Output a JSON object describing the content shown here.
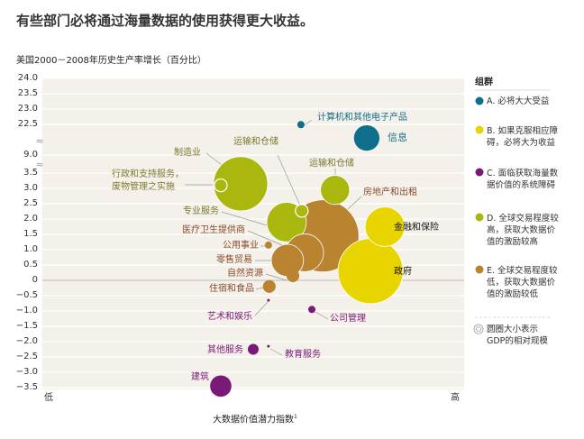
{
  "title": "有些部门必将通过海量数据的使用获得更大收益。",
  "chart_data": {
    "type": "scatter",
    "subtype": "bubble",
    "title": "有些部门必将通过海量数据的使用获得更大收益。",
    "ylabel": "美国2000－2008年历史生产率增长（百分比）",
    "xlabel": "大数据价值潜力指数",
    "xlabel_footnote": "1",
    "x_low_label": "低",
    "x_high_label": "高",
    "x_range": [
      0,
      100
    ],
    "y_axis_broken": true,
    "yticks": [
      "24.0",
      "23.5",
      "23.0",
      "22.5",
      "9.0",
      "3.5",
      "3.0",
      "2.5",
      "2.0",
      "1.5",
      "1.0",
      "0.5",
      "0",
      "-0.5",
      "-1.0",
      "-1.5",
      "-2.0",
      "-2.5",
      "-3.0",
      "-3.5"
    ],
    "grid": true,
    "legend_placement": "right",
    "legend_title": "组群",
    "groups": [
      {
        "id": "A",
        "label": "A. 必将大大受益",
        "color": "#0e6e8c"
      },
      {
        "id": "B",
        "label": "B. 如果克服相应障碍，必将大为收益",
        "color": "#e8d500"
      },
      {
        "id": "C",
        "label": "C. 面临获取海量数据价值的系统障碍",
        "color": "#7a1a78"
      },
      {
        "id": "D",
        "label": "D. 全球交易程度较高，获取大数据价值的激励较高",
        "color": "#a9b70e"
      },
      {
        "id": "E",
        "label": "E. 全球交易程度较低，获取大数据价值的激励较低",
        "color": "#b9832f"
      }
    ],
    "size_note": "圆圈大小表示GDP的相对规模",
    "points": [
      {
        "name": "计算机和其他电子产品",
        "group": "A",
        "x": 61.3,
        "y": 22.4,
        "gdp": 0.16
      },
      {
        "name": "信息",
        "group": "A",
        "x": 76.9,
        "y": 16.5,
        "gdp": 2.0
      },
      {
        "name": "制造业",
        "group": "D",
        "x": 47.0,
        "y": 3.15,
        "gdp": 9.0
      },
      {
        "name": "行政和支持服务，废物管理之实施",
        "group": "D",
        "x": 42.3,
        "y": 3.1,
        "gdp": 0.5
      },
      {
        "name": "运输和仓储",
        "group": "D",
        "x": 69.4,
        "y": 2.95,
        "gdp": 2.6
      },
      {
        "name": "运输和仓储",
        "group": "D",
        "x": 61.5,
        "y": 2.27,
        "gdp": 0.5
      },
      {
        "name": "专业服务",
        "group": "D",
        "x": 57.9,
        "y": 1.9,
        "gdp": 4.8
      },
      {
        "name": "房地产和出租",
        "group": "E",
        "x": 66.5,
        "y": 1.45,
        "gdp": 16.0
      },
      {
        "name": "金融和保险",
        "group": "B",
        "x": 81.2,
        "y": 1.75,
        "gdp": 4.8
      },
      {
        "name": "政府",
        "group": "B",
        "x": 77.8,
        "y": 0.3,
        "gdp": 13.0
      },
      {
        "name": "医疗卫生提供商",
        "group": "E",
        "x": 62.2,
        "y": 0.9,
        "gdp": 4.4
      },
      {
        "name": "公用事业",
        "group": "E",
        "x": 53.6,
        "y": 1.15,
        "gdp": 0.16
      },
      {
        "name": "零售贸易",
        "group": "E",
        "x": 58.1,
        "y": 0.65,
        "gdp": 3.2
      },
      {
        "name": "自然资源",
        "group": "E",
        "x": 59.4,
        "y": 0.15,
        "gdp": 0.5
      },
      {
        "name": "住宿和食品",
        "group": "E",
        "x": 53.8,
        "y": -0.2,
        "gdp": 0.5
      },
      {
        "name": "艺术和娱乐",
        "group": "C",
        "x": 53.6,
        "y": -0.65,
        "gdp": 0.02
      },
      {
        "name": "公司管理",
        "group": "C",
        "x": 63.9,
        "y": -0.95,
        "gdp": 0.16
      },
      {
        "name": "其他服务",
        "group": "C",
        "x": 50.0,
        "y": -2.25,
        "gdp": 0.36
      },
      {
        "name": "教育服务",
        "group": "C",
        "x": 53.6,
        "y": -2.15,
        "gdp": 0.02
      },
      {
        "name": "建筑",
        "group": "C",
        "x": 42.3,
        "y": -3.45,
        "gdp": 1.4
      }
    ]
  }
}
